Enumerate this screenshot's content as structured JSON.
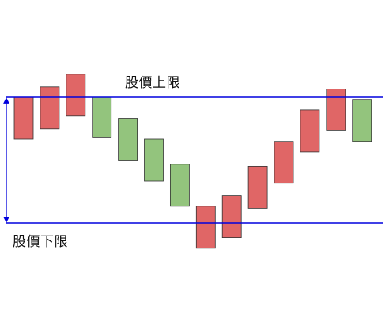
{
  "chart_data": {
    "type": "candlestick",
    "title": "",
    "xlabel": "",
    "ylabel": "",
    "ylim": [
      0,
      100
    ],
    "colors": {
      "up": "#e06666",
      "down": "#93c47d",
      "border": "#333333",
      "level_line": "#0000dd"
    },
    "candles": [
      {
        "open": 40,
        "close": 60,
        "color": "up"
      },
      {
        "open": 45,
        "close": 65,
        "color": "up"
      },
      {
        "open": 51,
        "close": 71,
        "color": "up"
      },
      {
        "open": 60,
        "close": 41,
        "color": "down"
      },
      {
        "open": 50,
        "close": 30,
        "color": "down"
      },
      {
        "open": 40,
        "close": 20,
        "color": "down"
      },
      {
        "open": 28,
        "close": 8,
        "color": "down"
      },
      {
        "open": -12,
        "close": 8,
        "color": "up"
      },
      {
        "open": -7,
        "close": 13,
        "color": "up"
      },
      {
        "open": 7,
        "close": 27,
        "color": "up"
      },
      {
        "open": 19,
        "close": 39,
        "color": "up"
      },
      {
        "open": 34,
        "close": 54,
        "color": "up"
      },
      {
        "open": 44,
        "close": 64,
        "color": "up"
      },
      {
        "open": 59,
        "close": 39,
        "color": "down"
      }
    ],
    "levels": [
      {
        "name": "upper",
        "value": 60,
        "label": "股價上限"
      },
      {
        "name": "lower",
        "value": 0,
        "label": "股價下限"
      }
    ],
    "range_arrow": {
      "from": 0,
      "to": 60
    }
  }
}
